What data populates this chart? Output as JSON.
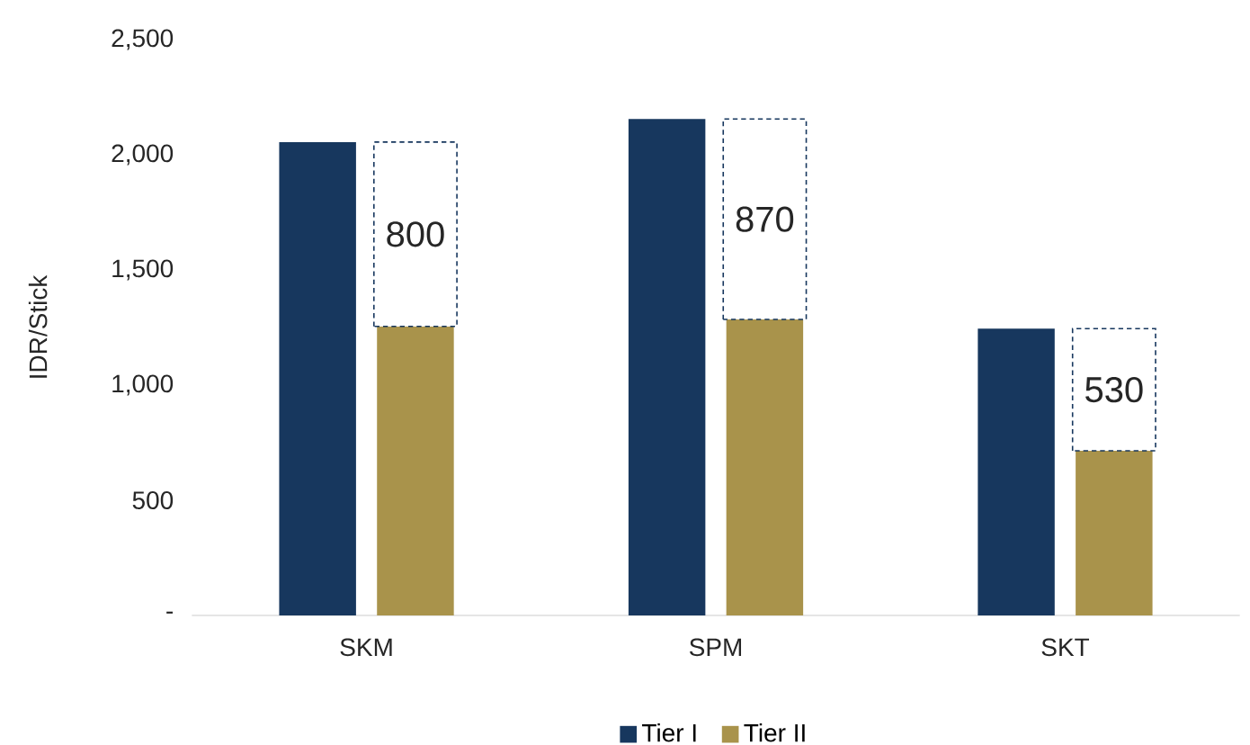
{
  "chart_data": {
    "type": "bar",
    "ylabel": "IDR/Stick",
    "categories": [
      "SKM",
      "SPM",
      "SKT"
    ],
    "series": [
      {
        "name": "Tier I",
        "color": "#17375e",
        "values": [
          2055,
          2155,
          1245
        ]
      },
      {
        "name": "Tier II",
        "color": "#a9934b",
        "values": [
          1255,
          1285,
          715
        ]
      },
      {
        "color": "#ffffff",
        "line_style": "dashed",
        "base": [
          1255,
          1285,
          715
        ],
        "values": [
          800,
          870,
          530
        ],
        "value_labels": [
          "800",
          "870",
          "530"
        ]
      }
    ],
    "ylim": [
      0,
      2500
    ],
    "yticks": [
      {
        "value": 0,
        "label": "-"
      },
      500,
      {
        "value": 1000,
        "label": "1,000"
      },
      {
        "value": 1500,
        "label": "1,500"
      },
      {
        "value": 2000,
        "label": "2,000"
      },
      {
        "value": 2500,
        "label": "2,500"
      }
    ],
    "legend": "bottom"
  }
}
